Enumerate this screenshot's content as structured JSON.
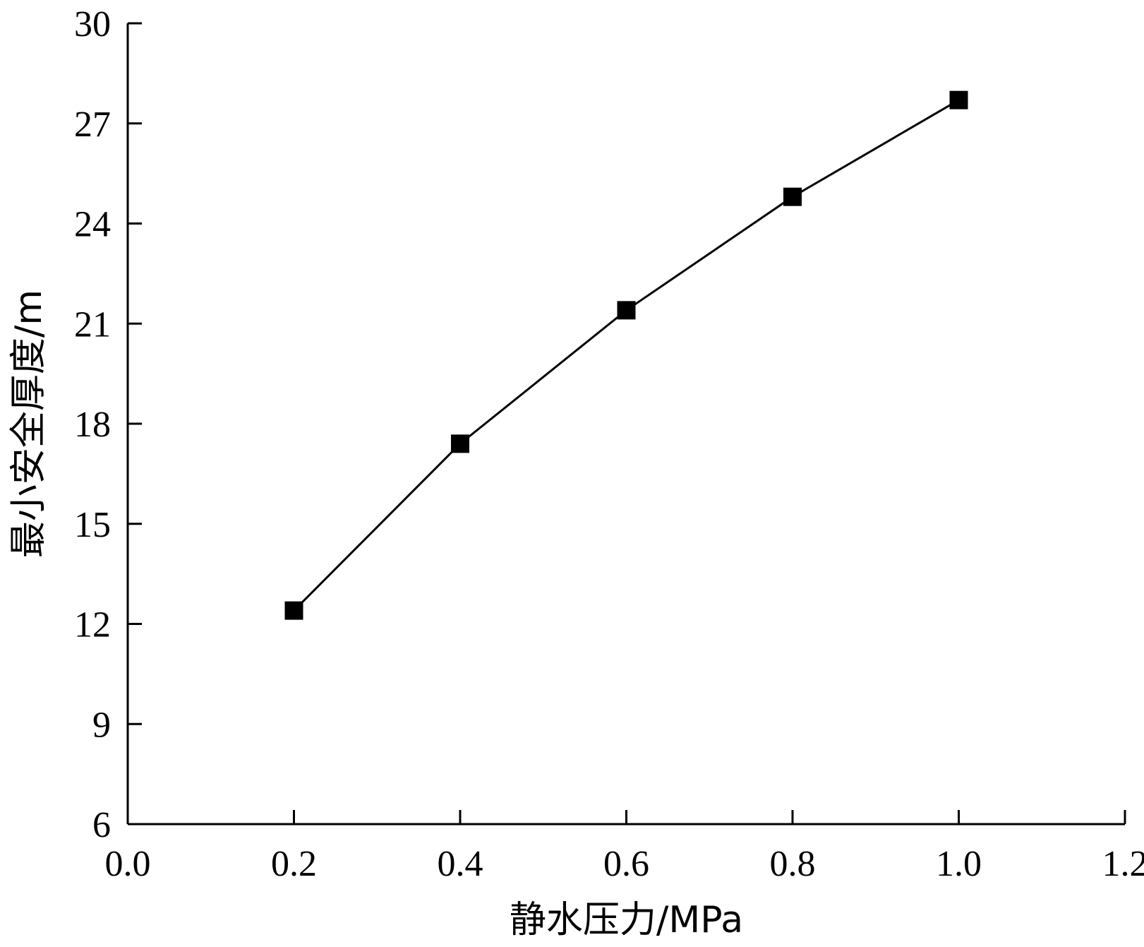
{
  "chart_data": {
    "type": "line",
    "title": "",
    "xlabel": "静水压力/MPa",
    "ylabel": "最小安全厚度/m",
    "xlim": [
      0.0,
      1.2
    ],
    "ylim": [
      6,
      30
    ],
    "x_ticks": [
      "0.0",
      "0.2",
      "0.4",
      "0.6",
      "0.8",
      "1.0",
      "1.2"
    ],
    "y_ticks": [
      "6",
      "9",
      "12",
      "15",
      "18",
      "21",
      "24",
      "27",
      "30"
    ],
    "grid": false,
    "legend": "none",
    "series": [
      {
        "marker": "square",
        "color": "#000000",
        "x": [
          0.2,
          0.4,
          0.6,
          0.8,
          1.0
        ],
        "y": [
          12.4,
          17.4,
          21.4,
          24.8,
          27.7
        ]
      }
    ]
  }
}
